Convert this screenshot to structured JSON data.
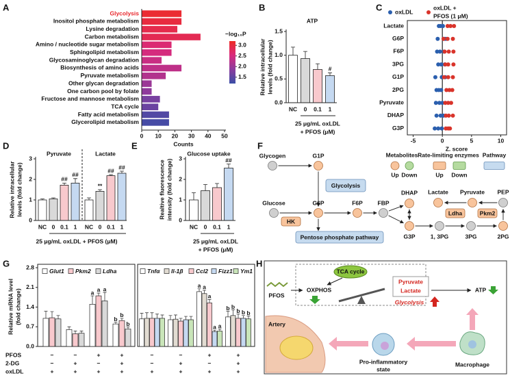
{
  "chart_data": [
    {
      "panel": "A",
      "type": "barh",
      "categories": [
        "Glycolysis",
        "Inositol phosphate metabolism",
        "Lysine degradation",
        "Carbon metabolism",
        "Amino / nucleotide sugar metabolism",
        "Sphingolipid metabolism",
        "Glycosaminoglycan degradation",
        "Biosynthesis of amino acids",
        "Pyruvate metabolism",
        "Other glycan degradation",
        "One carbon pool by folate",
        "Fructose and mannose metabolism",
        "TCA cycle",
        "Fatty acid metabolism",
        "Glycerolipid metabolism"
      ],
      "values": [
        24,
        24,
        21.5,
        35.5,
        18,
        18,
        12,
        24,
        14.5,
        6,
        6,
        11,
        10,
        16.5,
        16.5
      ],
      "color_values": [
        3.1,
        3.0,
        2.9,
        2.85,
        2.6,
        2.5,
        2.4,
        2.3,
        2.2,
        2.0,
        1.9,
        1.7,
        1.6,
        1.4,
        1.3
      ],
      "colorbar": {
        "title": "−log₁₀P",
        "lim": [
          1.2,
          3.2
        ],
        "colors": [
          "#3a4ea6",
          "#8b3c9e",
          "#d92a7c",
          "#ee2b25"
        ],
        "ticks": [
          {
            "value": 1.5,
            "label": "1.5"
          },
          {
            "value": 2,
            "label": "2.0"
          },
          {
            "value": 2.5,
            "label": "2.5"
          },
          {
            "value": 3,
            "label": "3.0"
          }
        ]
      },
      "highlight_index": 0,
      "highlight_color": "#e8262b",
      "xlim": [
        0,
        50
      ],
      "xticks": [
        0,
        10,
        20,
        30,
        40,
        50
      ],
      "xlabel": "Counts"
    },
    {
      "panel": "B",
      "type": "bar",
      "title": "ATP",
      "categories": [
        "NC",
        "0",
        "0.1",
        "1"
      ],
      "values": [
        1.0,
        0.93,
        0.7,
        0.57
      ],
      "errors": [
        0.17,
        0.15,
        0.12,
        0.06
      ],
      "annotations": [
        null,
        null,
        null,
        "#"
      ],
      "colors": [
        "#ffffff",
        "#d9d9d9",
        "#f8c9cd",
        "#c5d9f1"
      ],
      "ylim": [
        0,
        1.5
      ],
      "yticks": [
        {
          "value": 0,
          "label": "0.0"
        },
        {
          "value": 0.5,
          "label": "0.5"
        },
        {
          "value": 1,
          "label": "1.0"
        },
        {
          "value": 1.5,
          "label": "1.5"
        }
      ],
      "ylabel": [
        "Relative intracellular",
        "levels (fold change)"
      ],
      "xlabel": [
        "25 μg/mL oxLDL",
        "+ PFOS (μM)"
      ]
    },
    {
      "panel": "C",
      "type": "dot",
      "categories": [
        "Lactate",
        "G6P",
        "F6P",
        "3PG",
        "G1P",
        "2PG",
        "Pyruvate",
        "DHAP",
        "G3P"
      ],
      "series": [
        {
          "name": [
            "oxLDL"
          ],
          "color": "#2b5fae",
          "values": [
            [
              -0.6,
              -0.3,
              0.1
            ],
            [
              -0.8,
              0.3,
              0.6
            ],
            [
              -0.9,
              -0.4,
              0.3
            ],
            [
              -0.7,
              -0.2,
              0.4
            ],
            [
              -1.2,
              -0.1,
              0.5
            ],
            [
              -1.0,
              -0.6,
              -0.2
            ],
            [
              -1.1,
              -0.5,
              0.0
            ],
            [
              -1.0,
              -0.3,
              0.2
            ],
            [
              -1.3,
              -0.7,
              -0.1
            ]
          ]
        },
        {
          "name": [
            "oxLDL +",
            "PFOS (1 μM)"
          ],
          "color": "#d9342b",
          "values": [
            [
              0.9,
              1.4,
              2.0
            ],
            [
              0.2,
              0.9,
              1.8
            ],
            [
              0.4,
              1.1,
              1.9
            ],
            [
              0.5,
              1.0,
              1.9
            ],
            [
              0.3,
              1.0,
              1.8
            ],
            [
              0.7,
              1.2,
              1.7
            ],
            [
              0.5,
              1.0,
              1.5
            ],
            [
              0.6,
              1.1,
              1.8
            ],
            [
              0.6,
              1.0,
              1.3
            ]
          ]
        }
      ],
      "xlim": [
        -6,
        11
      ],
      "xticks": [
        -5,
        0,
        5,
        10
      ],
      "xlabel": "Z. score"
    },
    {
      "panel": "D",
      "type": "bar",
      "groups": [
        {
          "title": "Pyruvate",
          "categories": [
            "NC",
            "0",
            "0.1",
            "1"
          ],
          "values": [
            1.0,
            1.05,
            1.72,
            1.82
          ],
          "errors": [
            0.05,
            0.05,
            0.1,
            0.22
          ],
          "annotations": [
            null,
            null,
            "##",
            "##"
          ]
        },
        {
          "title": "Lactate",
          "categories": [
            "NC",
            "0",
            "0.1",
            "1"
          ],
          "values": [
            1.0,
            1.42,
            2.18,
            2.3
          ],
          "errors": [
            0.1,
            0.08,
            0.05,
            0.1
          ],
          "annotations": [
            null,
            "**",
            "##",
            "##"
          ]
        }
      ],
      "colors": [
        "#ffffff",
        "#d9d9d9",
        "#f8c9cd",
        "#c5d9f1"
      ],
      "ylim": [
        0,
        3
      ],
      "yticks": [
        0,
        1,
        2,
        3
      ],
      "ylabel": [
        "Relative intracellular",
        "levels (fold change)"
      ],
      "xlabel": "25 μg/mL oxLDL + PFOS (μM)"
    },
    {
      "panel": "E",
      "type": "bar",
      "title": "Glucose uptake",
      "categories": [
        "NC",
        "0",
        "0.1",
        "1"
      ],
      "values": [
        1.0,
        1.45,
        1.6,
        2.55
      ],
      "errors": [
        0.35,
        0.3,
        0.2,
        0.2
      ],
      "annotations": [
        null,
        null,
        null,
        "##"
      ],
      "colors": [
        "#ffffff",
        "#d9d9d9",
        "#f8c9cd",
        "#c5d9f1"
      ],
      "ylim": [
        0,
        3
      ],
      "yticks": [
        0,
        1,
        2,
        3
      ],
      "ylabel": [
        "Realtive fluorescence",
        "intensity (fold change)"
      ],
      "xlabel": [
        "25 μg/mL oxLDL",
        "+ PFOS (μM)"
      ]
    },
    {
      "panel": "G",
      "type": "grouped_bar",
      "groups": [
        {
          "series": [
            {
              "name": "Glut1",
              "color": "#ffffff",
              "values": [
                1.0,
                0.6,
                1.5,
                0.8
              ],
              "errors": [
                0.25,
                0.1,
                0.3,
                0.06
              ],
              "annotations": [
                null,
                null,
                "a",
                "b"
              ]
            },
            {
              "name": "Pkm2",
              "color": "#f8c9cd",
              "values": [
                1.02,
                0.45,
                1.8,
                0.92
              ],
              "errors": [
                0.22,
                0.1,
                0.1,
                0.08
              ],
              "annotations": [
                null,
                null,
                "a",
                "b"
              ]
            },
            {
              "name": "Ldha",
              "color": "#d9d9d9",
              "values": [
                0.98,
                0.47,
                1.62,
                0.62
              ],
              "errors": [
                0.12,
                0.08,
                0.3,
                0.07
              ],
              "annotations": [
                null,
                null,
                "a",
                "b"
              ]
            }
          ]
        },
        {
          "series": [
            {
              "name": "Tnfα",
              "color": "#ffffff",
              "values": [
                0.98,
                0.95,
                1.95,
                1.05
              ],
              "errors": [
                0.2,
                0.15,
                0.1,
                0.2
              ],
              "annotations": [
                null,
                null,
                "a",
                "b"
              ]
            },
            {
              "name": "Il-1β",
              "color": "#e2dcd2",
              "values": [
                1.0,
                0.97,
                1.88,
                1.1
              ],
              "errors": [
                0.2,
                0.15,
                0.12,
                0.2
              ],
              "annotations": [
                null,
                null,
                "a",
                "b"
              ]
            },
            {
              "name": "Ccl2",
              "color": "#f8c9cd",
              "values": [
                1.0,
                0.9,
                1.55,
                1.0
              ],
              "errors": [
                0.2,
                0.1,
                0.12,
                0.15
              ],
              "annotations": [
                null,
                null,
                "a",
                "b"
              ]
            },
            {
              "name": "Fizz1",
              "color": "#c5d9f1",
              "values": [
                1.0,
                0.95,
                0.53,
                1.0
              ],
              "errors": [
                0.15,
                0.12,
                0.05,
                0.1
              ],
              "annotations": [
                null,
                null,
                "a",
                "b"
              ]
            },
            {
              "name": "Ym1",
              "color": "#c9e5b9",
              "values": [
                1.0,
                0.95,
                0.55,
                0.98
              ],
              "errors": [
                0.12,
                0.12,
                0.07,
                0.1
              ],
              "annotations": [
                null,
                null,
                "a",
                "b"
              ]
            }
          ]
        }
      ],
      "conditions": [
        {
          "name": "PFOS",
          "values": [
            "−",
            "−",
            "+",
            "+"
          ]
        },
        {
          "name": "2-DG",
          "values": [
            "−",
            "+",
            "−",
            "+"
          ]
        },
        {
          "name": "oxLDL",
          "values": [
            "+",
            "+",
            "+",
            "+"
          ]
        }
      ],
      "ylim": [
        0,
        2.8
      ],
      "yticks": [
        {
          "value": 0,
          "label": "0.0"
        },
        {
          "value": 0.7,
          "label": "0.7"
        },
        {
          "value": 1.4,
          "label": "1.4"
        },
        {
          "value": 2.1,
          "label": "2.1"
        },
        {
          "value": 2.8,
          "label": "2.8"
        }
      ],
      "ylabel": [
        "Relative mRNA level",
        "(fold change)"
      ]
    }
  ],
  "diagrams": {
    "F": {
      "panel": "F",
      "nodes": [
        {
          "label": "Glycogen",
          "kind": "gray"
        },
        {
          "label": "G1P",
          "kind": "up"
        },
        {
          "label": "Glucose",
          "kind": "gray"
        },
        {
          "label": "G6P",
          "kind": "up"
        },
        {
          "label": "F6P",
          "kind": "up"
        },
        {
          "label": "FBP",
          "kind": "gray"
        },
        {
          "label": "DHAP",
          "kind": "up"
        },
        {
          "label": "G3P",
          "kind": "up"
        },
        {
          "label": "1, 3PG",
          "kind": "gray"
        },
        {
          "label": "3PG",
          "kind": "gray"
        },
        {
          "label": "2PG",
          "kind": "up"
        },
        {
          "label": "PEP",
          "kind": "gray"
        },
        {
          "label": "Pyruvate",
          "kind": "up"
        },
        {
          "label": "Lactate",
          "kind": "up"
        }
      ],
      "boxes": [
        {
          "label": "Glycolysis",
          "kind": "pathway"
        },
        {
          "label": "HK",
          "kind": "enzyme-up"
        },
        {
          "label": "Pentose phosphate pathway",
          "kind": "pathway"
        },
        {
          "label": "Ldha",
          "kind": "enzyme-up"
        },
        {
          "label": "Pkm2",
          "kind": "enzyme-up"
        }
      ],
      "legend": [
        {
          "label": "Metabolites",
          "items": [
            {
              "label": "Up",
              "kind": "up"
            },
            {
              "label": "Down",
              "kind": "down"
            }
          ]
        },
        {
          "label": "Rate-limiting enzymes",
          "items": [
            {
              "label": "Up",
              "kind": "enzyme-up"
            },
            {
              "label": "Down",
              "kind": "enzyme-down"
            }
          ]
        },
        {
          "label": "Pathway",
          "items": [
            {
              "kind": "pathway"
            }
          ]
        }
      ]
    },
    "H": {
      "panel": "H",
      "tca": "TCA cycle",
      "oxphos": "OXPHOS",
      "pfos": "PFOS",
      "pyruvate": "Pyruvate",
      "lactate": "Lactate",
      "glycolysis": "Glycolysis",
      "atp": "ATP",
      "artery": "Artery",
      "state": [
        "Pro-inflammatory",
        "state"
      ],
      "macrophage": "Macrophage"
    }
  }
}
